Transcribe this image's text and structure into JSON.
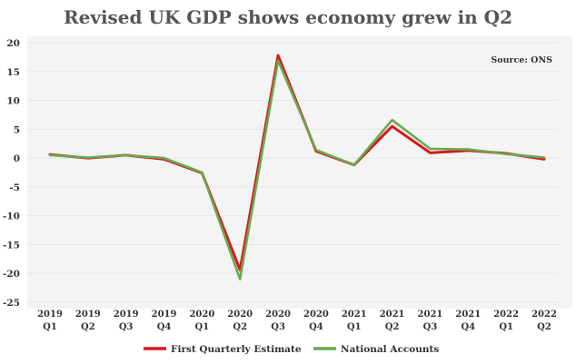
{
  "chart_data": {
    "type": "line",
    "title": "Revised UK GDP shows economy grew in Q2",
    "source": "Source: ONS",
    "xlabel": "",
    "ylabel": "",
    "ylim": [
      -25,
      20
    ],
    "yticks": [
      20,
      15,
      10,
      5,
      0,
      -5,
      -10,
      -15,
      -20,
      -25
    ],
    "grid": true,
    "legend_position": "bottom",
    "categories": [
      [
        "2019",
        "Q1"
      ],
      [
        "2019",
        "Q2"
      ],
      [
        "2019",
        "Q3"
      ],
      [
        "2019",
        "Q4"
      ],
      [
        "2020",
        "Q1"
      ],
      [
        "2020",
        "Q2"
      ],
      [
        "2020",
        "Q3"
      ],
      [
        "2020",
        "Q4"
      ],
      [
        "2021",
        "Q1"
      ],
      [
        "2021",
        "Q2"
      ],
      [
        "2021",
        "Q3"
      ],
      [
        "2021",
        "Q4"
      ],
      [
        "2022",
        "Q1"
      ],
      [
        "2022",
        "Q2"
      ]
    ],
    "series": [
      {
        "name": "First Quarterly Estimate",
        "color": "#d7191c",
        "values": [
          0.6,
          0.0,
          0.5,
          -0.2,
          -2.6,
          -19.4,
          17.8,
          1.2,
          -1.2,
          5.5,
          0.9,
          1.3,
          0.8,
          -0.2
        ]
      },
      {
        "name": "National Accounts",
        "color": "#6aa84f",
        "values": [
          0.5,
          0.1,
          0.5,
          0.0,
          -2.5,
          -21.0,
          16.9,
          1.4,
          -1.2,
          6.6,
          1.6,
          1.5,
          0.7,
          0.1
        ]
      }
    ]
  }
}
